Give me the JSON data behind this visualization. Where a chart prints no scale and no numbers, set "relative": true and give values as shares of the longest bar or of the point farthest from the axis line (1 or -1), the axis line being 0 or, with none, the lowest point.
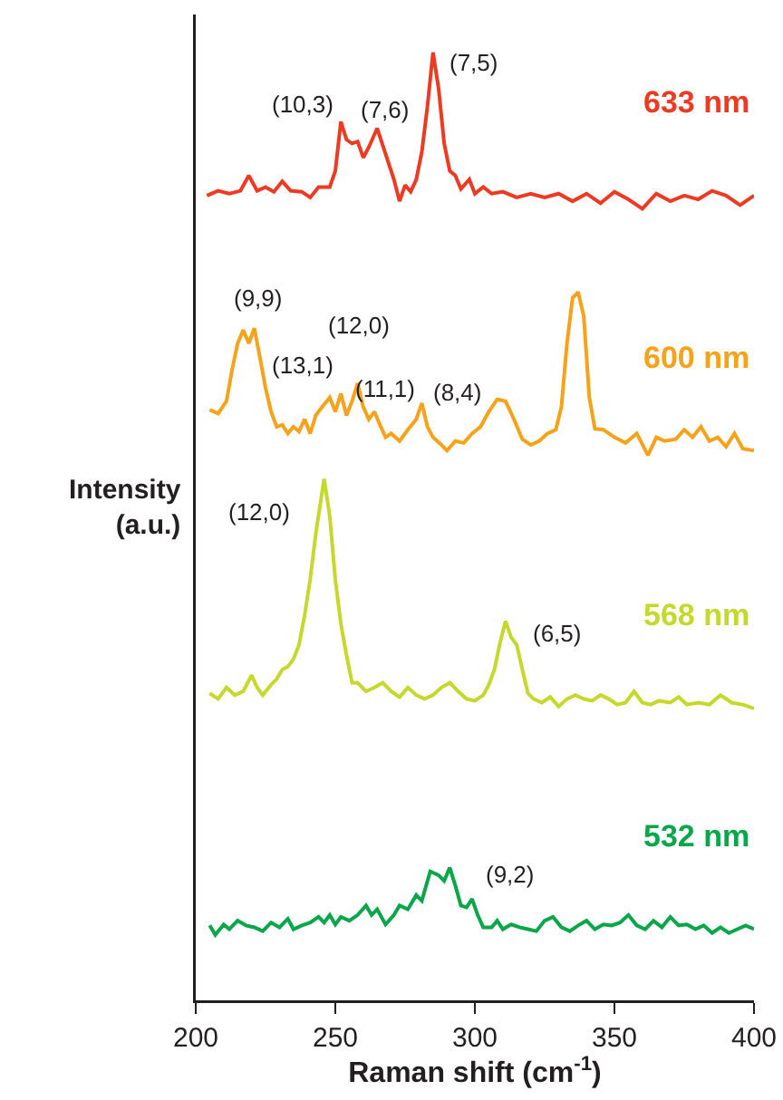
{
  "chart_data": {
    "type": "line",
    "relative": true,
    "xlabel": "Raman shift (cm$^{-1}$)",
    "ylabel": "Intensity (a.u.)",
    "xlim": [
      200,
      400
    ],
    "xticks": [
      200,
      250,
      300,
      350,
      400
    ],
    "grid": false,
    "legend": false,
    "marker": "none",
    "line_style": "solid",
    "series": [
      {
        "name": "633 nm",
        "color": "#ee3a23",
        "x": [
          204,
          208,
          212,
          216,
          219,
          222,
          225,
          228,
          231,
          234,
          238,
          241,
          244,
          248,
          250,
          252,
          254,
          256,
          258,
          260,
          262,
          265,
          268,
          271,
          273,
          275,
          277,
          279,
          281,
          283,
          285,
          287,
          289,
          291,
          293,
          295,
          298,
          300,
          303,
          306,
          310,
          315,
          320,
          325,
          330,
          335,
          340,
          345,
          350,
          355,
          360,
          365,
          370,
          375,
          380,
          385,
          390,
          395,
          400
        ],
        "values": [
          0.849,
          0.854,
          0.851,
          0.854,
          0.87,
          0.854,
          0.858,
          0.853,
          0.864,
          0.854,
          0.853,
          0.847,
          0.858,
          0.858,
          0.875,
          0.927,
          0.908,
          0.904,
          0.906,
          0.889,
          0.9,
          0.92,
          0.893,
          0.866,
          0.843,
          0.86,
          0.853,
          0.866,
          0.895,
          0.943,
          1,
          0.962,
          0.904,
          0.875,
          0.87,
          0.856,
          0.866,
          0.851,
          0.858,
          0.851,
          0.853,
          0.847,
          0.851,
          0.847,
          0.851,
          0.843,
          0.851,
          0.841,
          0.853,
          0.845,
          0.835,
          0.851,
          0.843,
          0.849,
          0.845,
          0.854,
          0.849,
          0.839,
          0.849
        ]
      },
      {
        "name": "600 nm",
        "color": "#f7a21b",
        "x": [
          205,
          208,
          211,
          213,
          215,
          217,
          219,
          221,
          223,
          225,
          227,
          229,
          231,
          233,
          235,
          237,
          239,
          241,
          243,
          245,
          248,
          250,
          252,
          254,
          256,
          258,
          260,
          262,
          264,
          266,
          268,
          270,
          273,
          276,
          279,
          281,
          283,
          285,
          288,
          290,
          293,
          296,
          299,
          302,
          305,
          308,
          311,
          314,
          317,
          320,
          323,
          326,
          329,
          331,
          333,
          335,
          337,
          339,
          341,
          343,
          346,
          350,
          354,
          358,
          362,
          365,
          368,
          372,
          375,
          378,
          381,
          384,
          387,
          390,
          393,
          396,
          400
        ],
        "values": [
          0.623,
          0.619,
          0.632,
          0.665,
          0.693,
          0.707,
          0.693,
          0.709,
          0.678,
          0.646,
          0.621,
          0.605,
          0.607,
          0.598,
          0.605,
          0.6,
          0.613,
          0.598,
          0.617,
          0.625,
          0.636,
          0.621,
          0.64,
          0.617,
          0.632,
          0.651,
          0.626,
          0.613,
          0.621,
          0.607,
          0.594,
          0.598,
          0.59,
          0.602,
          0.613,
          0.63,
          0.605,
          0.594,
          0.586,
          0.58,
          0.59,
          0.588,
          0.598,
          0.605,
          0.621,
          0.634,
          0.632,
          0.613,
          0.592,
          0.586,
          0.59,
          0.598,
          0.602,
          0.626,
          0.693,
          0.741,
          0.747,
          0.722,
          0.636,
          0.603,
          0.602,
          0.594,
          0.588,
          0.598,
          0.575,
          0.594,
          0.59,
          0.592,
          0.602,
          0.594,
          0.605,
          0.59,
          0.594,
          0.584,
          0.598,
          0.582,
          0.58
        ]
      },
      {
        "name": "568 nm",
        "color": "#c5d92d",
        "x": [
          205,
          208,
          211,
          214,
          217,
          220,
          222,
          224,
          227,
          229,
          231,
          233,
          235,
          237,
          239,
          241,
          243,
          245,
          246,
          248,
          250,
          252,
          254,
          256,
          258,
          261,
          264,
          267,
          270,
          273,
          276,
          279,
          282,
          285,
          288,
          291,
          294,
          297,
          300,
          303,
          305,
          307,
          309,
          311,
          313,
          315,
          317,
          319,
          321,
          324,
          327,
          330,
          333,
          336,
          339,
          342,
          345,
          348,
          351,
          354,
          357,
          360,
          363,
          366,
          370,
          373,
          376,
          380,
          384,
          388,
          392,
          396,
          400
        ],
        "values": [
          0.324,
          0.318,
          0.33,
          0.322,
          0.326,
          0.343,
          0.33,
          0.322,
          0.333,
          0.339,
          0.349,
          0.352,
          0.36,
          0.375,
          0.406,
          0.444,
          0.492,
          0.531,
          0.55,
          0.511,
          0.444,
          0.397,
          0.364,
          0.335,
          0.335,
          0.326,
          0.33,
          0.335,
          0.326,
          0.32,
          0.33,
          0.322,
          0.318,
          0.322,
          0.33,
          0.335,
          0.326,
          0.318,
          0.316,
          0.322,
          0.333,
          0.349,
          0.377,
          0.4,
          0.383,
          0.375,
          0.349,
          0.324,
          0.318,
          0.314,
          0.32,
          0.31,
          0.318,
          0.322,
          0.318,
          0.316,
          0.322,
          0.318,
          0.312,
          0.314,
          0.326,
          0.314,
          0.312,
          0.316,
          0.314,
          0.32,
          0.312,
          0.314,
          0.312,
          0.322,
          0.314,
          0.312,
          0.308
        ]
      },
      {
        "name": "532 nm",
        "color": "#0aa64a",
        "x": [
          205,
          207,
          210,
          212,
          215,
          218,
          221,
          224,
          227,
          230,
          233,
          235,
          238,
          241,
          244,
          246,
          248,
          250,
          252,
          255,
          258,
          261,
          263,
          265,
          268,
          271,
          273,
          276,
          279,
          281,
          284,
          287,
          289,
          291,
          293,
          295,
          297,
          299,
          301,
          303,
          306,
          308,
          310,
          313,
          316,
          319,
          322,
          325,
          328,
          331,
          334,
          337,
          340,
          343,
          346,
          349,
          352,
          355,
          358,
          361,
          364,
          367,
          370,
          373,
          376,
          379,
          382,
          385,
          388,
          391,
          394,
          397,
          400
        ],
        "values": [
          0.079,
          0.069,
          0.08,
          0.075,
          0.084,
          0.079,
          0.077,
          0.073,
          0.082,
          0.077,
          0.086,
          0.075,
          0.079,
          0.082,
          0.088,
          0.082,
          0.09,
          0.08,
          0.088,
          0.084,
          0.09,
          0.1,
          0.09,
          0.096,
          0.08,
          0.09,
          0.1,
          0.096,
          0.111,
          0.105,
          0.136,
          0.132,
          0.126,
          0.14,
          0.121,
          0.1,
          0.098,
          0.107,
          0.09,
          0.077,
          0.077,
          0.084,
          0.075,
          0.08,
          0.077,
          0.075,
          0.073,
          0.084,
          0.088,
          0.077,
          0.073,
          0.079,
          0.084,
          0.075,
          0.08,
          0.079,
          0.082,
          0.09,
          0.079,
          0.075,
          0.084,
          0.077,
          0.088,
          0.079,
          0.08,
          0.075,
          0.079,
          0.071,
          0.077,
          0.071,
          0.075,
          0.079,
          0.075
        ]
      }
    ],
    "annotations": [
      {
        "text": "(10,3)",
        "x": 252,
        "y": 0.927
      },
      {
        "text": "(7,6)",
        "x": 265,
        "y": 0.92
      },
      {
        "text": "(7,5)",
        "x": 285,
        "y": 1
      },
      {
        "text": "(9,9)",
        "x": 221,
        "y": 0.709
      },
      {
        "text": "(13,1)",
        "x": 245,
        "y": 0.625
      },
      {
        "text": "(12,0)",
        "x": 258,
        "y": 0.651
      },
      {
        "text": "(11,1)",
        "x": 281,
        "y": 0.63
      },
      {
        "text": "(8,4)",
        "x": 311,
        "y": 0.632
      },
      {
        "text": "(12,0)",
        "x": 246,
        "y": 0.55
      },
      {
        "text": "(6,5)",
        "x": 311,
        "y": 0.4
      },
      {
        "text": "(9,2)",
        "x": 291,
        "y": 0.14
      }
    ]
  }
}
